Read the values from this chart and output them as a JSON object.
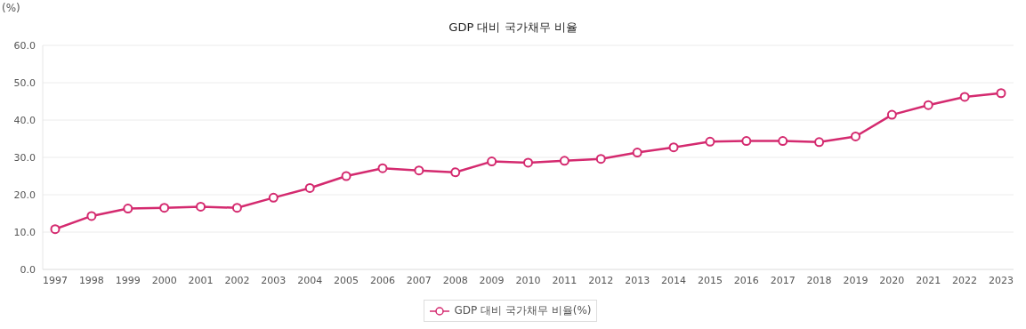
{
  "chart_data": {
    "type": "line",
    "title": "GDP 대비 국가채무 비율",
    "ylabel": "(%)",
    "categories": [
      "1997",
      "1998",
      "1999",
      "2000",
      "2001",
      "2002",
      "2003",
      "2004",
      "2005",
      "2006",
      "2007",
      "2008",
      "2009",
      "2010",
      "2011",
      "2012",
      "2013",
      "2014",
      "2015",
      "2016",
      "2017",
      "2018",
      "2019",
      "2020",
      "2021",
      "2022",
      "2023"
    ],
    "series": [
      {
        "name": "GDP 대비 국가채무 비율(%)",
        "color": "#d42a6f",
        "values": [
          10.8,
          14.3,
          16.3,
          16.5,
          16.8,
          16.5,
          19.2,
          21.8,
          25.0,
          27.1,
          26.5,
          26.0,
          28.9,
          28.6,
          29.1,
          29.6,
          31.3,
          32.7,
          34.2,
          34.4,
          34.4,
          34.1,
          35.6,
          41.4,
          44.0,
          46.2,
          47.2
        ]
      }
    ],
    "ylim": [
      0,
      60
    ],
    "yticks": [
      {
        "value": 0,
        "label": "0.0"
      },
      {
        "value": 10,
        "label": "10.0"
      },
      {
        "value": 20,
        "label": "20.0"
      },
      {
        "value": 30,
        "label": "30.0"
      },
      {
        "value": 40,
        "label": "40.0"
      },
      {
        "value": 50,
        "label": "50.0"
      },
      {
        "value": 60,
        "label": "60.0"
      }
    ],
    "grid": "y",
    "legend": "bottom",
    "marker": "circle",
    "line_style": "solid"
  }
}
